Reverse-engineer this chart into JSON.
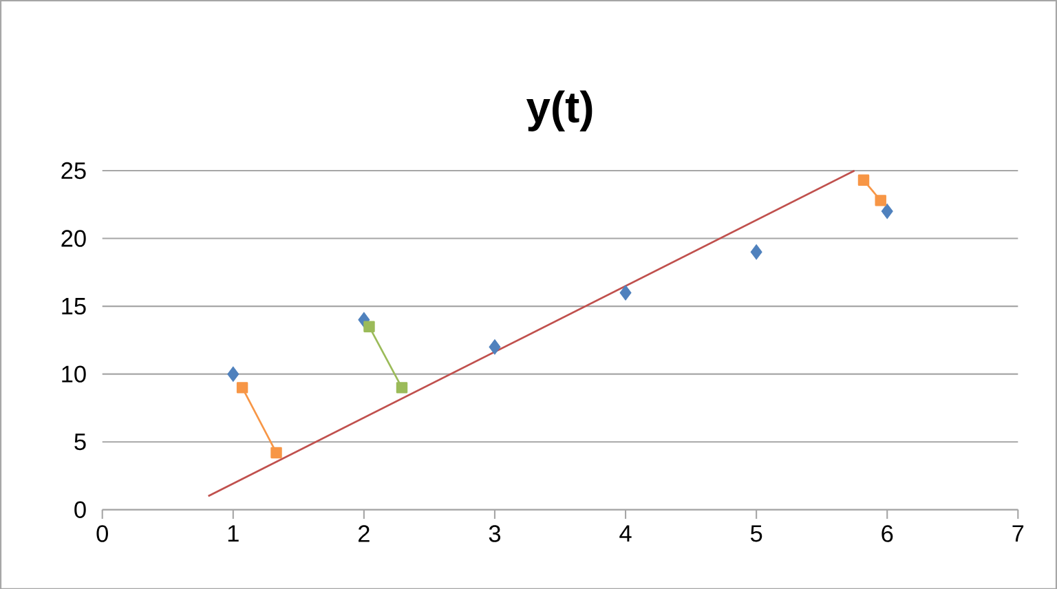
{
  "chart_data": {
    "type": "scatter",
    "title": "y(t)",
    "xlim": [
      0,
      7
    ],
    "ylim": [
      0,
      25
    ],
    "xticks": [
      0,
      1,
      2,
      3,
      4,
      5,
      6,
      7
    ],
    "yticks": [
      0,
      5,
      10,
      15,
      20,
      25
    ],
    "grid": "y",
    "series": [
      {
        "type": "line",
        "color": "#c0504d",
        "marker": "none",
        "x": [
          0.81,
          5.75
        ],
        "values": [
          1.0,
          25
        ]
      },
      {
        "type": "scatter",
        "color": "#4f81bd",
        "marker": "diamond",
        "x": [
          1,
          2,
          3,
          4,
          5,
          6
        ],
        "values": [
          10,
          14,
          12,
          16,
          19,
          22
        ]
      },
      {
        "type": "line",
        "color": "#f79646",
        "marker": "square",
        "x": [
          1.07,
          1.33
        ],
        "values": [
          9.0,
          4.2
        ]
      },
      {
        "type": "line",
        "color": "#9bbb59",
        "marker": "square",
        "x": [
          2.04,
          2.29
        ],
        "values": [
          13.5,
          9.0
        ]
      },
      {
        "type": "line",
        "color": "#f79646",
        "marker": "square",
        "x": [
          5.82,
          5.95
        ],
        "values": [
          24.3,
          22.8
        ]
      }
    ]
  }
}
